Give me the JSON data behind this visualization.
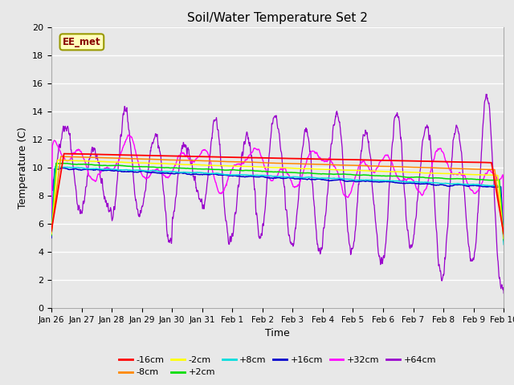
{
  "title": "Soil/Water Temperature Set 2",
  "xlabel": "Time",
  "ylabel": "Temperature (C)",
  "ylim": [
    0,
    20
  ],
  "yticks": [
    0,
    2,
    4,
    6,
    8,
    10,
    12,
    14,
    16,
    18,
    20
  ],
  "xtick_labels": [
    "Jan 26",
    "Jan 27",
    "Jan 28",
    "Jan 29",
    "Jan 30",
    "Jan 31",
    "Feb 1",
    "Feb 2",
    "Feb 3",
    "Feb 4",
    "Feb 5",
    "Feb 6",
    "Feb 7",
    "Feb 8",
    "Feb 9",
    "Feb 10"
  ],
  "plot_bg_color": "#e8e8e8",
  "watermark_text": "EE_met",
  "series_colors": {
    "-16cm": "#ff0000",
    "-8cm": "#ff8800",
    "-2cm": "#ffff00",
    "+2cm": "#00dd00",
    "+8cm": "#00dddd",
    "+16cm": "#0000cc",
    "+32cm": "#ff00ff",
    "+64cm": "#9900cc"
  },
  "legend_order": [
    "-16cm",
    "-8cm",
    "-2cm",
    "+2cm",
    "+8cm",
    "+16cm",
    "+32cm",
    "+64cm"
  ]
}
